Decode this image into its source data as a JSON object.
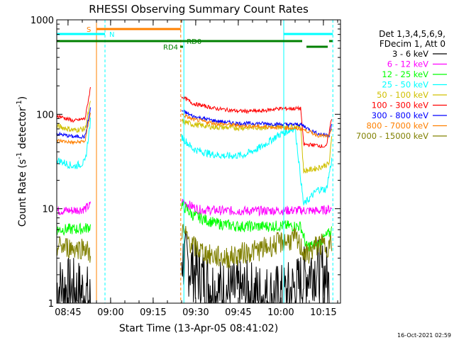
{
  "chart_data": {
    "type": "line",
    "title": "RHESSI Observing Summary Count Rates",
    "xlabel": "Start Time (13-Apr-05 08:41:02)",
    "ylabel_main": "Count Rate (s",
    "ylabel_sup1": "-1",
    "ylabel_mid": " detector",
    "ylabel_sup2": "-1",
    "ylabel_end": ")",
    "y_scale": "log",
    "ylim": [
      1,
      1000
    ],
    "xlim_minutes": [
      0,
      100
    ],
    "x_start_time": "08:41:02",
    "x_ticks": [
      {
        "min": 3.97,
        "label": "08:45"
      },
      {
        "min": 18.97,
        "label": "09:00"
      },
      {
        "min": 33.97,
        "label": "09:15"
      },
      {
        "min": 48.97,
        "label": "09:30"
      },
      {
        "min": 63.97,
        "label": "09:45"
      },
      {
        "min": 78.97,
        "label": "10:00"
      },
      {
        "min": 93.97,
        "label": "10:15"
      }
    ],
    "y_ticks": [
      {
        "value": 1,
        "label": "1"
      },
      {
        "value": 10,
        "label": "10"
      },
      {
        "value": 100,
        "label": "100"
      },
      {
        "value": 1000,
        "label": "1000"
      }
    ],
    "legend_title": [
      "Det 1,3,4,5,6,9,",
      "FDecim 1, Att 0"
    ],
    "legend_position": "right",
    "series": [
      {
        "name": "3 - 6 keV",
        "color": "#000000",
        "points": [
          [
            0,
            1.5
          ],
          [
            10,
            1.3
          ],
          [
            12,
            1.0
          ],
          [
            42,
            1.0
          ],
          [
            44,
            3.0
          ],
          [
            50,
            2.0
          ],
          [
            56,
            1.4
          ],
          [
            62,
            1.3
          ],
          [
            68,
            1.3
          ],
          [
            74,
            1.2
          ],
          [
            80,
            1.2
          ],
          [
            85,
            1.5
          ],
          [
            90,
            2.4
          ],
          [
            95,
            2.0
          ],
          [
            97,
            1.0
          ]
        ]
      },
      {
        "name": "6 - 12 keV",
        "color": "#ff00ff",
        "points": [
          [
            0,
            9.5
          ],
          [
            6,
            9.6
          ],
          [
            10,
            10.0
          ],
          [
            12,
            11
          ],
          [
            44,
            12
          ],
          [
            50,
            9.8
          ],
          [
            60,
            9.5
          ],
          [
            70,
            9.5
          ],
          [
            80,
            9.6
          ],
          [
            86,
            9.6
          ],
          [
            92,
            9.5
          ],
          [
            97,
            10
          ]
        ]
      },
      {
        "name": "12 - 25 keV",
        "color": "#00ff00",
        "points": [
          [
            0,
            6.0
          ],
          [
            8,
            6.1
          ],
          [
            10,
            6.2
          ],
          [
            12,
            6.5
          ],
          [
            44,
            11
          ],
          [
            48,
            8.5
          ],
          [
            56,
            7.0
          ],
          [
            64,
            6.5
          ],
          [
            72,
            6.5
          ],
          [
            80,
            6.6
          ],
          [
            86,
            6.5
          ],
          [
            88,
            4.0
          ],
          [
            92,
            4.2
          ],
          [
            96,
            5.5
          ],
          [
            97,
            6.0
          ]
        ]
      },
      {
        "name": "25 - 50 keV",
        "color": "#00ffff",
        "points": [
          [
            0,
            33
          ],
          [
            6,
            28
          ],
          [
            10,
            31
          ],
          [
            12,
            90
          ],
          [
            44,
            58
          ],
          [
            48,
            43
          ],
          [
            54,
            38
          ],
          [
            60,
            36
          ],
          [
            66,
            37
          ],
          [
            72,
            45
          ],
          [
            78,
            60
          ],
          [
            84,
            72
          ],
          [
            87,
            11
          ],
          [
            92,
            16
          ],
          [
            95,
            16
          ],
          [
            97,
            34
          ]
        ]
      },
      {
        "name": "50 - 100 keV",
        "color": "#d0c000",
        "points": [
          [
            0,
            75
          ],
          [
            6,
            68
          ],
          [
            10,
            70
          ],
          [
            12,
            140
          ],
          [
            44,
            85
          ],
          [
            48,
            78
          ],
          [
            56,
            73
          ],
          [
            64,
            72
          ],
          [
            72,
            73
          ],
          [
            80,
            74
          ],
          [
            86,
            74
          ],
          [
            87,
            25
          ],
          [
            92,
            27
          ],
          [
            96,
            30
          ],
          [
            97,
            60
          ]
        ]
      },
      {
        "name": "100 - 300 keV",
        "color": "#ff0000",
        "points": [
          [
            0,
            97
          ],
          [
            6,
            85
          ],
          [
            10,
            90
          ],
          [
            12,
            200
          ],
          [
            44,
            155
          ],
          [
            48,
            130
          ],
          [
            56,
            115
          ],
          [
            64,
            108
          ],
          [
            72,
            108
          ],
          [
            78,
            115
          ],
          [
            86,
            115
          ],
          [
            87,
            48
          ],
          [
            92,
            47
          ],
          [
            95,
            45
          ],
          [
            97,
            95
          ]
        ]
      },
      {
        "name": "300 - 800 keV",
        "color": "#0000ff",
        "points": [
          [
            0,
            62
          ],
          [
            6,
            58
          ],
          [
            10,
            58
          ],
          [
            12,
            120
          ],
          [
            44,
            110
          ],
          [
            48,
            95
          ],
          [
            56,
            85
          ],
          [
            64,
            80
          ],
          [
            72,
            80
          ],
          [
            80,
            78
          ],
          [
            86,
            78
          ],
          [
            88,
            72
          ],
          [
            92,
            62
          ],
          [
            96,
            60
          ],
          [
            97,
            78
          ]
        ]
      },
      {
        "name": "800 - 7000 keV",
        "color": "#ff8000",
        "points": [
          [
            0,
            53
          ],
          [
            6,
            50
          ],
          [
            10,
            52
          ],
          [
            12,
            110
          ],
          [
            44,
            100
          ],
          [
            48,
            88
          ],
          [
            56,
            80
          ],
          [
            64,
            76
          ],
          [
            72,
            74
          ],
          [
            80,
            72
          ],
          [
            86,
            70
          ],
          [
            88,
            67
          ],
          [
            92,
            60
          ],
          [
            96,
            58
          ],
          [
            97,
            70
          ]
        ]
      },
      {
        "name": "7000 - 15000 keV",
        "color": "#808000",
        "points": [
          [
            0,
            4.0
          ],
          [
            8,
            3.8
          ],
          [
            10,
            4.0
          ],
          [
            12,
            3.0
          ],
          [
            44,
            6.0
          ],
          [
            48,
            4.0
          ],
          [
            54,
            3.2
          ],
          [
            60,
            3.0
          ],
          [
            66,
            3.4
          ],
          [
            72,
            3.7
          ],
          [
            78,
            4.3
          ],
          [
            84,
            4.8
          ],
          [
            88,
            3.2
          ],
          [
            92,
            4.2
          ],
          [
            96,
            4.0
          ],
          [
            97,
            4.5
          ]
        ]
      }
    ],
    "vertical_lines": [
      {
        "min": 14.0,
        "color": "#ff8000",
        "dash": false
      },
      {
        "min": 17.0,
        "color": "#00ffff",
        "dash": true
      },
      {
        "min": 43.7,
        "color": "#ff8000",
        "dash": true
      },
      {
        "min": 44.8,
        "color": "#00ffff",
        "dash": false
      },
      {
        "min": 80.0,
        "color": "#00ffff",
        "dash": false
      },
      {
        "min": 97.3,
        "color": "#00ffff",
        "dash": true
      }
    ],
    "status_bars": [
      {
        "label": "S",
        "color": "#ff8000",
        "y_level": 1,
        "segments": [
          [
            14.0,
            43.7
          ]
        ],
        "label_at": 10.5
      },
      {
        "label": "N",
        "color": "#00ffff",
        "y_level": 2,
        "segments": [
          [
            0,
            17.0
          ],
          [
            80.0,
            97.3
          ]
        ],
        "label_at": 18.5
      },
      {
        "label": "RD0",
        "color": "#008000",
        "y_level": 3,
        "segments": [
          [
            0,
            86.5
          ],
          [
            96.0,
            97.2
          ]
        ],
        "label_at": 45.8
      },
      {
        "label": "RD4",
        "color": "#008000",
        "y_level": 4,
        "segments": [
          [
            43.5,
            44.5
          ],
          [
            88.0,
            95.5
          ]
        ],
        "label_at": 37.5
      }
    ]
  },
  "footer_timestamp": "16-Oct-2021 02:59"
}
